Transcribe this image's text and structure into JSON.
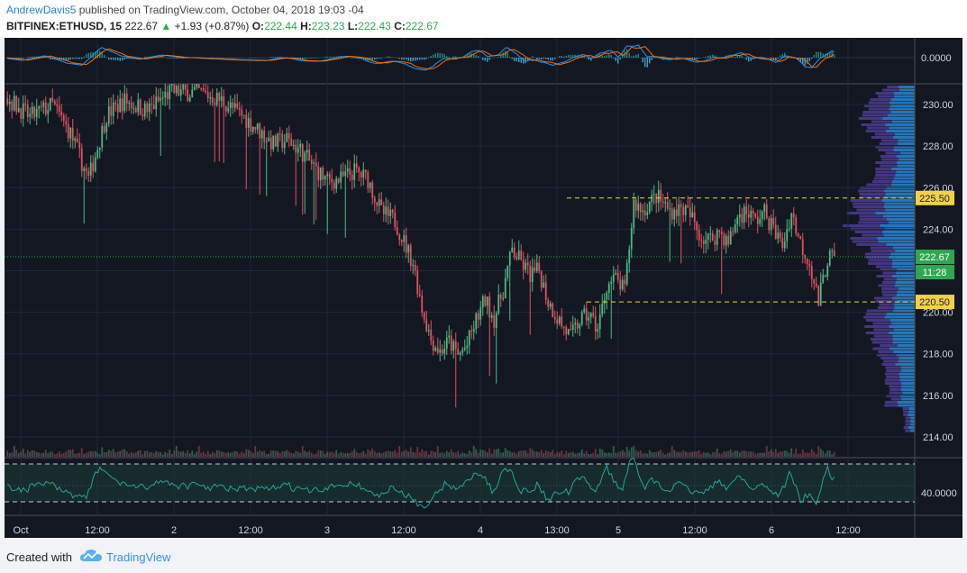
{
  "header": {
    "author": "AndrewDavis5",
    "published": " published on TradingView.com, October 04, 2018 19:03 -04",
    "symbol": "BITFINEX:ETHUSD, 15",
    "last": "222.67",
    "change_arrow": "▲",
    "change": "+1.93 (+0.87%)",
    "o_label": "O:",
    "o_val": "222.44",
    "h_label": "H:",
    "h_val": "223.23",
    "l_label": "L:",
    "l_val": "222.43",
    "c_label": "C:",
    "c_val": "222.67"
  },
  "footer": {
    "created": "Created with",
    "brand": "TradingView",
    "logo_icon": "tradingview-cloud-icon"
  },
  "colors": {
    "up": "#4fb883",
    "down": "#e0525f",
    "background": "#131722",
    "price_tag": "#2fa650",
    "level_tag": "#f2d04a",
    "vp_up": "#2a7ec8",
    "vp_down": "#4a3a8c"
  },
  "chart_data": [
    {
      "type": "candlestick",
      "title": "BITFINEX:ETHUSD, 15",
      "ylim": [
        213,
        231
      ],
      "y_ticks": [
        "230.00",
        "228.00",
        "226.00",
        "224.00",
        "222.00",
        "220.00",
        "218.00",
        "216.00",
        "214.00"
      ],
      "x_ticks": [
        "Oct",
        "12:00",
        "2",
        "12:00",
        "3",
        "12:00",
        "4",
        "13:00",
        "5",
        "12:00",
        "6",
        "12:00"
      ],
      "price_tag": {
        "value": "222.67",
        "countdown": "11:28"
      },
      "levels": [
        {
          "label": "225.50",
          "value": 225.5
        },
        {
          "label": "220.50",
          "value": 220.5
        }
      ],
      "close_path": [
        [
          0,
          230.3
        ],
        [
          10,
          229.4
        ],
        [
          20,
          230.0
        ],
        [
          28,
          228.6
        ],
        [
          36,
          226.4
        ],
        [
          44,
          229.5
        ],
        [
          52,
          230.2
        ],
        [
          62,
          229.7
        ],
        [
          72,
          230.6
        ],
        [
          85,
          230.6
        ],
        [
          95,
          230.2
        ],
        [
          105,
          229.4
        ],
        [
          112,
          228.7
        ],
        [
          118,
          228.1
        ],
        [
          124,
          228.3
        ],
        [
          130,
          227.8
        ],
        [
          136,
          227.0
        ],
        [
          142,
          226.3
        ],
        [
          148,
          226.4
        ],
        [
          154,
          226.8
        ],
        [
          160,
          226.4
        ],
        [
          166,
          224.8
        ],
        [
          172,
          224.4
        ],
        [
          176,
          223.4
        ],
        [
          180,
          222.4
        ],
        [
          184,
          220.2
        ],
        [
          188,
          218.7
        ],
        [
          192,
          218.1
        ],
        [
          196,
          218.6
        ],
        [
          200,
          217.9
        ],
        [
          204,
          218.4
        ],
        [
          208,
          219.6
        ],
        [
          212,
          220.6
        ],
        [
          216,
          219.7
        ],
        [
          220,
          221.1
        ],
        [
          224,
          223.0
        ],
        [
          228,
          222.4
        ],
        [
          232,
          221.8
        ],
        [
          236,
          222.0
        ],
        [
          240,
          220.5
        ],
        [
          246,
          219.4
        ],
        [
          250,
          218.8
        ],
        [
          254,
          219.6
        ],
        [
          258,
          219.9
        ],
        [
          262,
          219.2
        ],
        [
          266,
          221.3
        ],
        [
          270,
          221.6
        ],
        [
          274,
          221.0
        ],
        [
          278,
          225.3
        ],
        [
          282,
          224.9
        ],
        [
          288,
          225.6
        ],
        [
          294,
          224.9
        ],
        [
          300,
          225.0
        ],
        [
          304,
          224.5
        ],
        [
          308,
          223.6
        ],
        [
          312,
          223.5
        ],
        [
          316,
          223.9
        ],
        [
          320,
          223.3
        ],
        [
          324,
          224.6
        ],
        [
          328,
          224.9
        ],
        [
          332,
          224.4
        ],
        [
          336,
          224.8
        ],
        [
          340,
          224.0
        ],
        [
          344,
          223.2
        ],
        [
          348,
          224.8
        ],
        [
          352,
          223.3
        ],
        [
          356,
          222.4
        ],
        [
          360,
          220.5
        ],
        [
          364,
          222.6
        ],
        [
          367,
          222.7
        ]
      ]
    },
    {
      "type": "line",
      "panel": "macd",
      "y_ticks": [
        "0.0000"
      ]
    },
    {
      "type": "line",
      "panel": "oscillator",
      "y_ticks": [
        "40.0000"
      ]
    }
  ]
}
